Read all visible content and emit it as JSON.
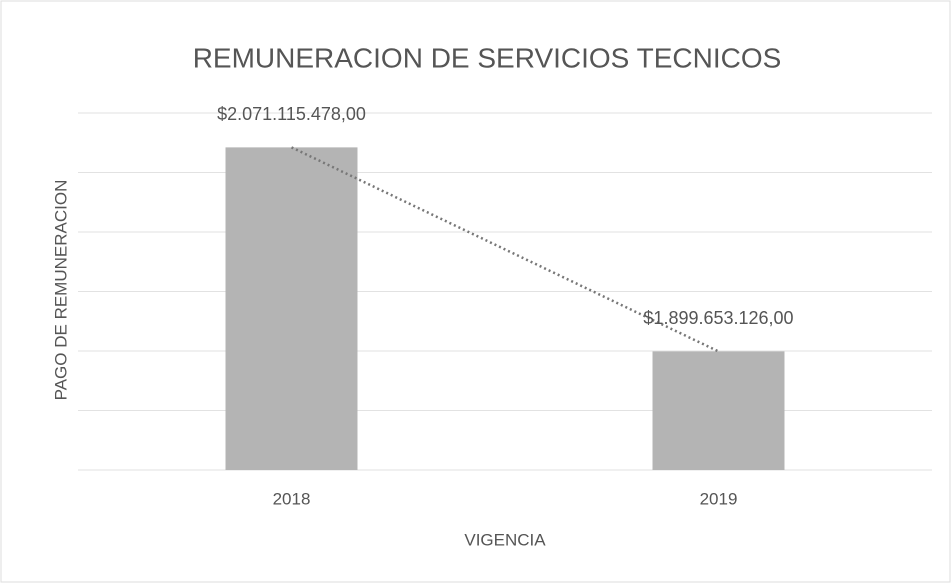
{
  "chart_data": {
    "type": "bar",
    "title": "REMUNERACION DE SERVICIOS TECNICOS",
    "x_label": "VIGENCIA",
    "y_label": "PAGO DE REMUNERACION",
    "categories": [
      "2018",
      "2019"
    ],
    "values": [
      2071115478,
      1899653126
    ],
    "value_labels": [
      "$2.071.115.478,00",
      "$1.899.653.126,00"
    ],
    "color": "#b4b4b4",
    "trendline": true,
    "ylim": [
      1800000000,
      2100000000
    ],
    "yticks": [
      1800000000,
      1850000000,
      1900000000,
      1950000000,
      2000000000,
      2050000000,
      2100000000
    ],
    "grid": true
  }
}
